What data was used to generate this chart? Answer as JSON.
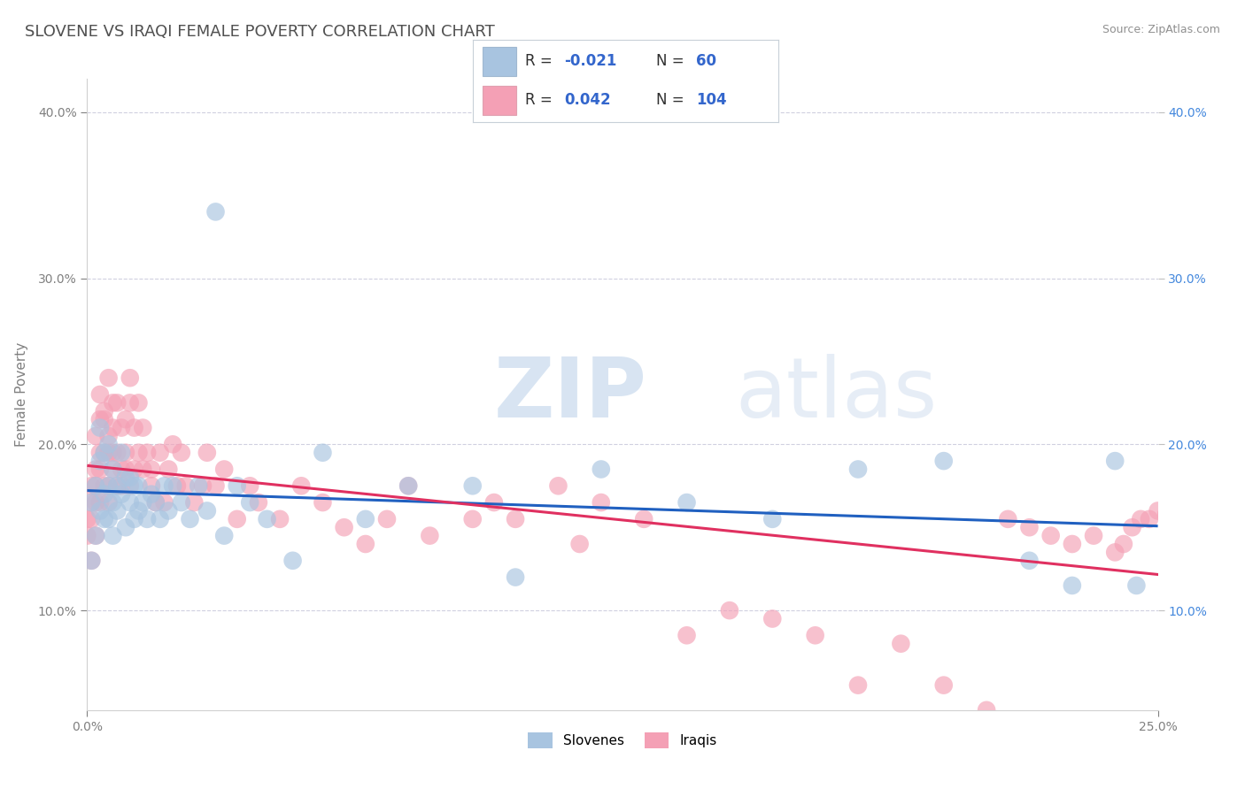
{
  "title": "SLOVENE VS IRAQI FEMALE POVERTY CORRELATION CHART",
  "source": "Source: ZipAtlas.com",
  "ylabel": "Female Poverty",
  "slovene_color": "#a8c4e0",
  "iraqi_color": "#f4a0b5",
  "slovene_line_color": "#2060c0",
  "iraqi_line_color": "#e03060",
  "background_color": "#ffffff",
  "plot_bg_color": "#ffffff",
  "xmin": 0.0,
  "xmax": 0.25,
  "ymin": 0.04,
  "ymax": 0.42,
  "xtick_values": [
    0.0,
    0.25
  ],
  "xtick_labels": [
    "0.0%",
    "25.0%"
  ],
  "ytick_labels": [
    "10.0%",
    "20.0%",
    "30.0%",
    "40.0%"
  ],
  "ytick_values": [
    0.1,
    0.2,
    0.3,
    0.4
  ],
  "watermark_zip": "ZIP",
  "watermark_atlas": "atlas",
  "title_color": "#505050",
  "title_fontsize": 13,
  "axis_label_color": "#808080",
  "tick_color": "#808080",
  "grid_color": "#d0d0e0",
  "legend_r1": "-0.021",
  "legend_n1": "60",
  "legend_r2": "0.042",
  "legend_n2": "104",
  "slovene_points_x": [
    0.001,
    0.001,
    0.002,
    0.002,
    0.003,
    0.003,
    0.003,
    0.004,
    0.004,
    0.004,
    0.005,
    0.005,
    0.005,
    0.006,
    0.006,
    0.006,
    0.007,
    0.007,
    0.008,
    0.008,
    0.009,
    0.009,
    0.01,
    0.01,
    0.011,
    0.011,
    0.012,
    0.012,
    0.013,
    0.014,
    0.015,
    0.016,
    0.017,
    0.018,
    0.019,
    0.02,
    0.022,
    0.024,
    0.026,
    0.028,
    0.03,
    0.032,
    0.035,
    0.038,
    0.042,
    0.048,
    0.055,
    0.065,
    0.075,
    0.09,
    0.1,
    0.12,
    0.14,
    0.16,
    0.18,
    0.2,
    0.22,
    0.23,
    0.24,
    0.245
  ],
  "slovene_points_y": [
    0.13,
    0.165,
    0.145,
    0.175,
    0.16,
    0.19,
    0.21,
    0.155,
    0.17,
    0.195,
    0.155,
    0.175,
    0.2,
    0.165,
    0.185,
    0.145,
    0.175,
    0.16,
    0.17,
    0.195,
    0.15,
    0.18,
    0.165,
    0.18,
    0.155,
    0.175,
    0.16,
    0.175,
    0.165,
    0.155,
    0.17,
    0.165,
    0.155,
    0.175,
    0.16,
    0.175,
    0.165,
    0.155,
    0.175,
    0.16,
    0.34,
    0.145,
    0.175,
    0.165,
    0.155,
    0.13,
    0.195,
    0.155,
    0.175,
    0.175,
    0.12,
    0.185,
    0.165,
    0.155,
    0.185,
    0.19,
    0.13,
    0.115,
    0.19,
    0.115
  ],
  "iraqi_points_x": [
    0.0,
    0.0,
    0.001,
    0.001,
    0.001,
    0.001,
    0.002,
    0.002,
    0.002,
    0.002,
    0.002,
    0.003,
    0.003,
    0.003,
    0.003,
    0.003,
    0.004,
    0.004,
    0.004,
    0.004,
    0.005,
    0.005,
    0.005,
    0.005,
    0.005,
    0.006,
    0.006,
    0.006,
    0.006,
    0.007,
    0.007,
    0.007,
    0.008,
    0.008,
    0.008,
    0.009,
    0.009,
    0.009,
    0.01,
    0.01,
    0.01,
    0.011,
    0.011,
    0.012,
    0.012,
    0.013,
    0.013,
    0.014,
    0.015,
    0.015,
    0.016,
    0.017,
    0.018,
    0.019,
    0.02,
    0.021,
    0.022,
    0.023,
    0.025,
    0.027,
    0.028,
    0.03,
    0.032,
    0.035,
    0.038,
    0.04,
    0.045,
    0.05,
    0.055,
    0.06,
    0.065,
    0.07,
    0.075,
    0.08,
    0.09,
    0.095,
    0.1,
    0.11,
    0.115,
    0.12,
    0.13,
    0.14,
    0.15,
    0.16,
    0.17,
    0.18,
    0.19,
    0.2,
    0.21,
    0.215,
    0.22,
    0.225,
    0.23,
    0.235,
    0.24,
    0.242,
    0.244,
    0.246,
    0.248,
    0.25,
    0.252,
    0.254,
    0.256,
    0.258
  ],
  "iraqi_points_y": [
    0.145,
    0.155,
    0.13,
    0.155,
    0.175,
    0.165,
    0.145,
    0.165,
    0.185,
    0.205,
    0.175,
    0.185,
    0.215,
    0.23,
    0.165,
    0.195,
    0.195,
    0.22,
    0.175,
    0.215,
    0.175,
    0.205,
    0.195,
    0.24,
    0.165,
    0.195,
    0.185,
    0.21,
    0.225,
    0.195,
    0.225,
    0.175,
    0.185,
    0.21,
    0.175,
    0.215,
    0.195,
    0.185,
    0.175,
    0.225,
    0.24,
    0.185,
    0.21,
    0.195,
    0.225,
    0.185,
    0.21,
    0.195,
    0.175,
    0.185,
    0.165,
    0.195,
    0.165,
    0.185,
    0.2,
    0.175,
    0.195,
    0.175,
    0.165,
    0.175,
    0.195,
    0.175,
    0.185,
    0.155,
    0.175,
    0.165,
    0.155,
    0.175,
    0.165,
    0.15,
    0.14,
    0.155,
    0.175,
    0.145,
    0.155,
    0.165,
    0.155,
    0.175,
    0.14,
    0.165,
    0.155,
    0.085,
    0.1,
    0.095,
    0.085,
    0.055,
    0.08,
    0.055,
    0.04,
    0.155,
    0.15,
    0.145,
    0.14,
    0.145,
    0.135,
    0.14,
    0.15,
    0.155,
    0.155,
    0.16,
    0.158,
    0.158,
    0.16,
    0.162
  ]
}
